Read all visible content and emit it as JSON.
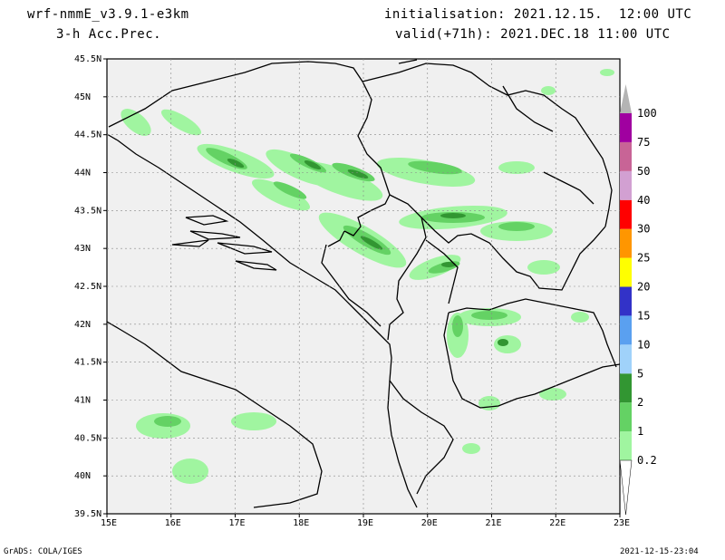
{
  "header": {
    "model": "wrf-nmmE_v3.9.1-e3km",
    "field": "3-h Acc.Prec.",
    "initialisation": "initialisation: 2021.12.15.  12:00 UTC",
    "valid": "valid(+71h): 2021.DEC.18 11:00 UTC"
  },
  "map": {
    "lat_labels": [
      "45.5N",
      "45N",
      "44.5N",
      "44N",
      "43.5N",
      "43N",
      "42.5N",
      "42N",
      "41.5N",
      "41N",
      "40.5N",
      "40N",
      "39.5N"
    ],
    "lon_labels": [
      "15E",
      "16E",
      "17E",
      "18E",
      "19E",
      "20E",
      "21E",
      "22E",
      "23E"
    ],
    "background_color": "#f0f0f0",
    "land_color": "#f0f0f0"
  },
  "legend": {
    "levels": [
      "0.2",
      "1",
      "2",
      "5",
      "10",
      "15",
      "20",
      "25",
      "30",
      "40",
      "50",
      "75",
      "100"
    ],
    "colors": [
      "#a0f5a0",
      "#64d264",
      "#329632",
      "#a0d2fa",
      "#5aa0f0",
      "#3232c8",
      "#ffff00",
      "#ff9600",
      "#ff0000",
      "#d2a0d2",
      "#c86496",
      "#a000a0",
      "#b4b4b4"
    ]
  },
  "footer": {
    "left": "GrADS: COLA/IGES",
    "right": "2021-12-15-23:04"
  }
}
